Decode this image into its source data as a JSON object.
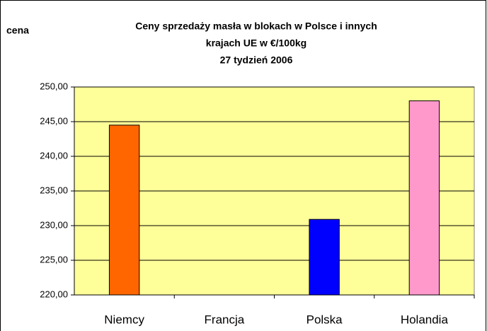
{
  "chart_data": {
    "type": "bar",
    "title": [
      "Ceny sprzedaży masła w blokach w Polsce i  innych",
      "krajach UE w €/100kg",
      "27 tydzień 2006"
    ],
    "y_label": "cena",
    "categories": [
      "Niemcy",
      "Francja",
      "Polska",
      "Holandia"
    ],
    "values": [
      244.5,
      null,
      230.9,
      248.0
    ],
    "colors": [
      "#ff6600",
      null,
      "#0000ff",
      "#ff99cc"
    ],
    "ylim": [
      220,
      250
    ],
    "yticks": [
      {
        "value": 220,
        "label": "220,00"
      },
      {
        "value": 225,
        "label": "225,00"
      },
      {
        "value": 230,
        "label": "230,00"
      },
      {
        "value": 235,
        "label": "235,00"
      },
      {
        "value": 240,
        "label": "240,00"
      },
      {
        "value": 245,
        "label": "245,00"
      },
      {
        "value": 250,
        "label": "250,00"
      }
    ],
    "grid": true,
    "plot_background": "#ffff99"
  }
}
